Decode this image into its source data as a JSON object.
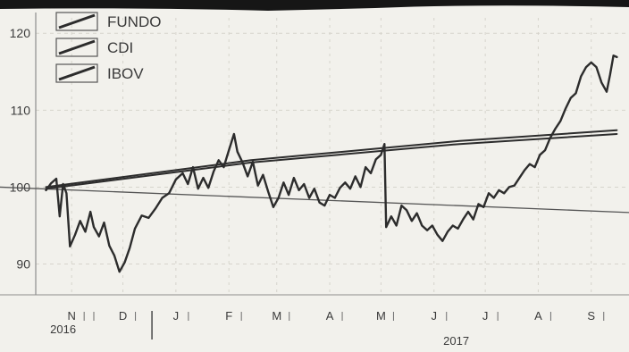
{
  "chart_data": {
    "type": "line",
    "title": "",
    "xlabel": "",
    "ylabel": "",
    "ylim": [
      86,
      122
    ],
    "y_ticks": [
      90,
      100,
      110,
      120
    ],
    "x_range": [
      "2016-10-25",
      "2017-10-05"
    ],
    "month_ticks": [
      {
        "label": "N",
        "date": "2016-11-15"
      },
      {
        "label": "D",
        "date": "2016-12-15"
      },
      {
        "label": "J",
        "date": "2017-01-15"
      },
      {
        "label": "F",
        "date": "2017-02-15"
      },
      {
        "label": "M",
        "date": "2017-03-15"
      },
      {
        "label": "A",
        "date": "2017-04-15"
      },
      {
        "label": "M",
        "date": "2017-05-15"
      },
      {
        "label": "J",
        "date": "2017-06-15"
      },
      {
        "label": "J",
        "date": "2017-07-15"
      },
      {
        "label": "A",
        "date": "2017-08-15"
      },
      {
        "label": "S",
        "date": "2017-09-15"
      }
    ],
    "year_labels": [
      {
        "label": "2016",
        "date": "2016-11-10"
      },
      {
        "label": "2017",
        "date": "2017-06-28"
      }
    ],
    "year_divider": "2017-01-01",
    "reference_line": {
      "y_start": 100,
      "y_end": 96.7
    },
    "grid": true,
    "legend_position": "top-left",
    "series": [
      {
        "name": "FUNDO",
        "points": [
          [
            "2016-10-31",
            99.6
          ],
          [
            "2016-11-03",
            100.5
          ],
          [
            "2016-11-06",
            101.1
          ],
          [
            "2016-11-08",
            96.2
          ],
          [
            "2016-11-10",
            100.4
          ],
          [
            "2016-11-12",
            99.2
          ],
          [
            "2016-11-14",
            92.3
          ],
          [
            "2016-11-17",
            93.8
          ],
          [
            "2016-11-20",
            95.6
          ],
          [
            "2016-11-23",
            94.2
          ],
          [
            "2016-11-26",
            96.8
          ],
          [
            "2016-11-28",
            94.8
          ],
          [
            "2016-12-01",
            93.6
          ],
          [
            "2016-12-04",
            95.4
          ],
          [
            "2016-12-07",
            92.4
          ],
          [
            "2016-12-10",
            91.1
          ],
          [
            "2016-12-13",
            89.0
          ],
          [
            "2016-12-16",
            90.2
          ],
          [
            "2016-12-19",
            92.1
          ],
          [
            "2016-12-22",
            94.6
          ],
          [
            "2016-12-26",
            96.3
          ],
          [
            "2016-12-30",
            96.0
          ],
          [
            "2017-01-03",
            97.2
          ],
          [
            "2017-01-07",
            98.6
          ],
          [
            "2017-01-11",
            99.2
          ],
          [
            "2017-01-15",
            101.0
          ],
          [
            "2017-01-19",
            101.8
          ],
          [
            "2017-01-22",
            100.4
          ],
          [
            "2017-01-25",
            102.6
          ],
          [
            "2017-01-28",
            99.8
          ],
          [
            "2017-01-31",
            101.2
          ],
          [
            "2017-02-03",
            99.9
          ],
          [
            "2017-02-06",
            102.0
          ],
          [
            "2017-02-09",
            103.5
          ],
          [
            "2017-02-12",
            102.6
          ],
          [
            "2017-02-15",
            104.8
          ],
          [
            "2017-02-18",
            106.9
          ],
          [
            "2017-02-20",
            104.6
          ],
          [
            "2017-02-23",
            103.2
          ],
          [
            "2017-02-26",
            101.4
          ],
          [
            "2017-03-01",
            103.3
          ],
          [
            "2017-03-04",
            100.2
          ],
          [
            "2017-03-07",
            101.6
          ],
          [
            "2017-03-10",
            99.4
          ],
          [
            "2017-03-13",
            97.4
          ],
          [
            "2017-03-16",
            98.6
          ],
          [
            "2017-03-19",
            100.6
          ],
          [
            "2017-03-22",
            99.0
          ],
          [
            "2017-03-25",
            101.2
          ],
          [
            "2017-03-28",
            99.6
          ],
          [
            "2017-03-31",
            100.4
          ],
          [
            "2017-04-03",
            98.6
          ],
          [
            "2017-04-06",
            99.8
          ],
          [
            "2017-04-09",
            98.0
          ],
          [
            "2017-04-12",
            97.6
          ],
          [
            "2017-04-15",
            99.0
          ],
          [
            "2017-04-18",
            98.6
          ],
          [
            "2017-04-21",
            99.9
          ],
          [
            "2017-04-24",
            100.6
          ],
          [
            "2017-04-27",
            99.8
          ],
          [
            "2017-04-30",
            101.4
          ],
          [
            "2017-05-03",
            100.0
          ],
          [
            "2017-05-06",
            102.6
          ],
          [
            "2017-05-09",
            101.8
          ],
          [
            "2017-05-12",
            103.6
          ],
          [
            "2017-05-15",
            104.2
          ],
          [
            "2017-05-17",
            105.6
          ],
          [
            "2017-05-18",
            94.8
          ],
          [
            "2017-05-21",
            96.2
          ],
          [
            "2017-05-24",
            95.0
          ],
          [
            "2017-05-27",
            97.6
          ],
          [
            "2017-05-30",
            97.0
          ],
          [
            "2017-06-02",
            95.6
          ],
          [
            "2017-06-05",
            96.6
          ],
          [
            "2017-06-08",
            95.0
          ],
          [
            "2017-06-11",
            94.4
          ],
          [
            "2017-06-14",
            95.0
          ],
          [
            "2017-06-17",
            93.8
          ],
          [
            "2017-06-20",
            93.0
          ],
          [
            "2017-06-23",
            94.2
          ],
          [
            "2017-06-26",
            95.0
          ],
          [
            "2017-06-29",
            94.6
          ],
          [
            "2017-07-02",
            95.8
          ],
          [
            "2017-07-05",
            96.8
          ],
          [
            "2017-07-08",
            95.8
          ],
          [
            "2017-07-11",
            97.8
          ],
          [
            "2017-07-14",
            97.4
          ],
          [
            "2017-07-17",
            99.2
          ],
          [
            "2017-07-20",
            98.6
          ],
          [
            "2017-07-23",
            99.6
          ],
          [
            "2017-07-26",
            99.2
          ],
          [
            "2017-07-29",
            100.0
          ],
          [
            "2017-08-01",
            100.2
          ],
          [
            "2017-08-04",
            101.2
          ],
          [
            "2017-08-07",
            102.2
          ],
          [
            "2017-08-10",
            103.0
          ],
          [
            "2017-08-13",
            102.6
          ],
          [
            "2017-08-16",
            104.2
          ],
          [
            "2017-08-19",
            104.8
          ],
          [
            "2017-08-22",
            106.4
          ],
          [
            "2017-08-25",
            107.6
          ],
          [
            "2017-08-28",
            108.6
          ],
          [
            "2017-08-31",
            110.2
          ],
          [
            "2017-09-03",
            111.6
          ],
          [
            "2017-09-06",
            112.2
          ],
          [
            "2017-09-09",
            114.4
          ],
          [
            "2017-09-12",
            115.6
          ],
          [
            "2017-09-15",
            116.2
          ],
          [
            "2017-09-18",
            115.6
          ],
          [
            "2017-09-21",
            113.6
          ],
          [
            "2017-09-24",
            112.4
          ],
          [
            "2017-09-26",
            114.6
          ],
          [
            "2017-09-28",
            117.1
          ],
          [
            "2017-09-30",
            116.9
          ]
        ]
      },
      {
        "name": "CDI",
        "points": [
          [
            "2016-10-31",
            100.0
          ],
          [
            "2017-02-28",
            103.5
          ],
          [
            "2017-06-30",
            106.0
          ],
          [
            "2017-09-30",
            107.4
          ]
        ]
      },
      {
        "name": "IBOV",
        "points": [
          [
            "2016-10-31",
            99.8
          ],
          [
            "2017-02-28",
            103.2
          ],
          [
            "2017-06-30",
            105.6
          ],
          [
            "2017-09-30",
            106.9
          ]
        ]
      }
    ],
    "colors": {
      "background": "#f2f1ec",
      "series": "#2c2c2c",
      "grid": "#d6d4cc",
      "axis": "#8d8d8d",
      "top_band": "#161616"
    }
  }
}
